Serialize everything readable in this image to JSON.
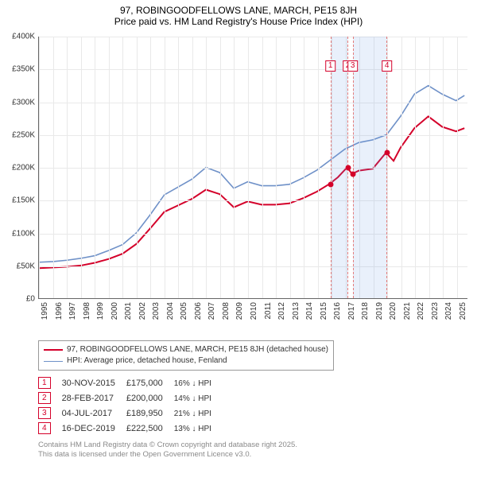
{
  "title": {
    "line1": "97, ROBINGOODFELLOWS LANE, MARCH, PE15 8JH",
    "line2": "Price paid vs. HM Land Registry's House Price Index (HPI)"
  },
  "chart": {
    "type": "line",
    "background_color": "#ffffff",
    "grid_color": "#e9e9e9",
    "axis_color": "#666666",
    "y": {
      "min": 0,
      "max": 400000,
      "step": 50000,
      "ticks": [
        "£0",
        "£50K",
        "£100K",
        "£150K",
        "£200K",
        "£250K",
        "£300K",
        "£350K",
        "£400K"
      ],
      "tick_fontsize": 10
    },
    "x": {
      "min": 1995,
      "max": 2025.8,
      "ticks": [
        1995,
        1996,
        1997,
        1998,
        1999,
        2000,
        2001,
        2002,
        2003,
        2004,
        2005,
        2006,
        2007,
        2008,
        2009,
        2010,
        2011,
        2012,
        2013,
        2014,
        2015,
        2016,
        2017,
        2018,
        2019,
        2020,
        2021,
        2022,
        2023,
        2024,
        2025
      ],
      "tick_fontsize": 10
    },
    "series": [
      {
        "name": "HPI: Average price, detached house, Fenland",
        "color": "#6f91c8",
        "width": 1.6,
        "points": [
          [
            1995,
            55000
          ],
          [
            1996,
            56000
          ],
          [
            1997,
            58000
          ],
          [
            1998,
            61000
          ],
          [
            1999,
            65000
          ],
          [
            2000,
            73000
          ],
          [
            2001,
            82000
          ],
          [
            2002,
            100000
          ],
          [
            2003,
            128000
          ],
          [
            2004,
            158000
          ],
          [
            2005,
            170000
          ],
          [
            2006,
            182000
          ],
          [
            2007,
            200000
          ],
          [
            2008,
            192000
          ],
          [
            2009,
            168000
          ],
          [
            2010,
            178000
          ],
          [
            2011,
            172000
          ],
          [
            2012,
            172000
          ],
          [
            2013,
            174000
          ],
          [
            2014,
            184000
          ],
          [
            2015,
            196000
          ],
          [
            2016,
            212000
          ],
          [
            2017,
            228000
          ],
          [
            2018,
            238000
          ],
          [
            2019,
            242000
          ],
          [
            2020,
            250000
          ],
          [
            2021,
            278000
          ],
          [
            2022,
            312000
          ],
          [
            2023,
            325000
          ],
          [
            2024,
            312000
          ],
          [
            2025,
            302000
          ],
          [
            2025.6,
            310000
          ]
        ]
      },
      {
        "name": "97, ROBINGOODFELLOWS LANE, MARCH, PE15 8JH (detached house)",
        "color": "#d4002a",
        "width": 2,
        "points": [
          [
            1995,
            46000
          ],
          [
            1996,
            47000
          ],
          [
            1997,
            48000
          ],
          [
            1998,
            50000
          ],
          [
            1999,
            54000
          ],
          [
            2000,
            60000
          ],
          [
            2001,
            68000
          ],
          [
            2002,
            83000
          ],
          [
            2003,
            107000
          ],
          [
            2004,
            132000
          ],
          [
            2005,
            142000
          ],
          [
            2006,
            152000
          ],
          [
            2007,
            166000
          ],
          [
            2008,
            159000
          ],
          [
            2009,
            139000
          ],
          [
            2010,
            148000
          ],
          [
            2011,
            143000
          ],
          [
            2012,
            143000
          ],
          [
            2013,
            145000
          ],
          [
            2014,
            153000
          ],
          [
            2015,
            163000
          ],
          [
            2015.91,
            175000
          ],
          [
            2016.5,
            185000
          ],
          [
            2017.16,
            200000
          ],
          [
            2017.51,
            189950
          ],
          [
            2018,
            195000
          ],
          [
            2019,
            198000
          ],
          [
            2019.96,
            222500
          ],
          [
            2020.5,
            210000
          ],
          [
            2021,
            230000
          ],
          [
            2022,
            260000
          ],
          [
            2023,
            278000
          ],
          [
            2024,
            262000
          ],
          [
            2025,
            255000
          ],
          [
            2025.6,
            260000
          ]
        ]
      }
    ],
    "bands": [
      {
        "start": 2015.91,
        "end": 2017.16,
        "fill": "rgba(110,155,225,0.15)",
        "dash_color": "#e37b7b"
      },
      {
        "start": 2017.51,
        "end": 2019.96,
        "fill": "rgba(110,155,225,0.15)",
        "dash_color": "#e37b7b"
      }
    ],
    "markers": [
      {
        "idx": "1",
        "x": 2015.91,
        "price": 175000
      },
      {
        "idx": "2",
        "x": 2017.16,
        "price": 200000
      },
      {
        "idx": "3",
        "x": 2017.51,
        "price": 189950
      },
      {
        "idx": "4",
        "x": 2019.96,
        "price": 222500
      }
    ],
    "marker_label_color": "#d4002a"
  },
  "legend": {
    "items": [
      {
        "color": "#d4002a",
        "width": 2,
        "label": "97, ROBINGOODFELLOWS LANE, MARCH, PE15 8JH (detached house)"
      },
      {
        "color": "#6f91c8",
        "width": 1.6,
        "label": "HPI: Average price, detached house, Fenland"
      }
    ]
  },
  "sales": [
    {
      "idx": "1",
      "date": "30-NOV-2015",
      "price": "£175,000",
      "delta": "16% ↓ HPI"
    },
    {
      "idx": "2",
      "date": "28-FEB-2017",
      "price": "£200,000",
      "delta": "14% ↓ HPI"
    },
    {
      "idx": "3",
      "date": "04-JUL-2017",
      "price": "£189,950",
      "delta": "21% ↓ HPI"
    },
    {
      "idx": "4",
      "date": "16-DEC-2019",
      "price": "£222,500",
      "delta": "13% ↓ HPI"
    }
  ],
  "footer": {
    "line1": "Contains HM Land Registry data © Crown copyright and database right 2025.",
    "line2": "This data is licensed under the Open Government Licence v3.0."
  }
}
